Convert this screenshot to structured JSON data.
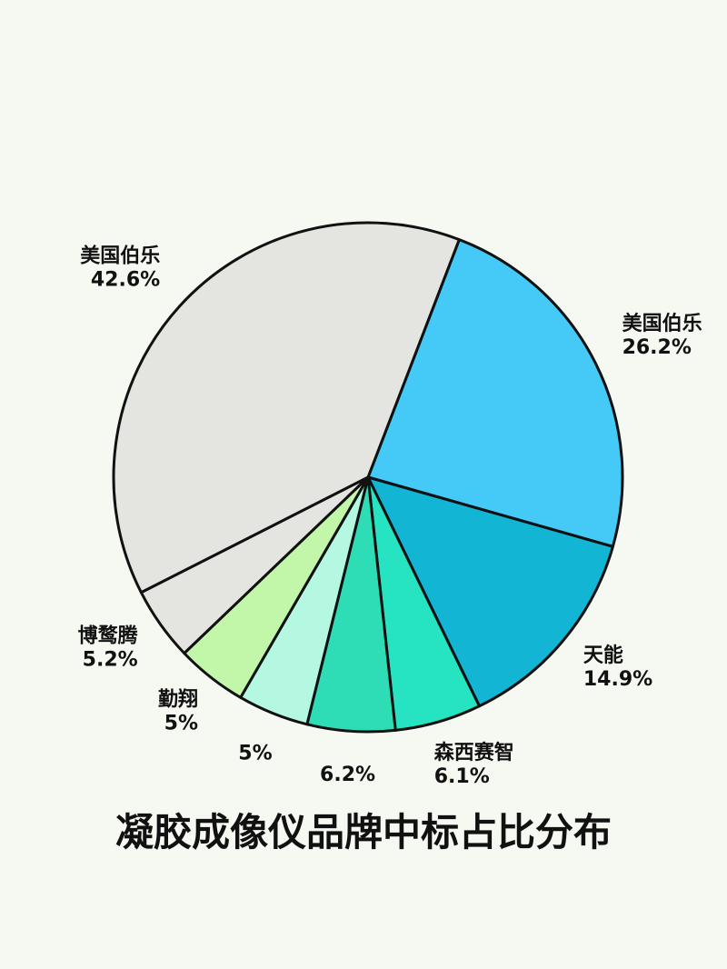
{
  "chart_data": {
    "type": "pie",
    "title": "凝胶成像仪品牌中标占比分布",
    "categories": [
      "美国伯乐",
      "天能",
      "森西赛智",
      null,
      null,
      "勤翔",
      "博鹜腾",
      "美国伯乐"
    ],
    "values": [
      26.2,
      14.9,
      6.1,
      6.2,
      5,
      5,
      5.2,
      42.6
    ],
    "value_labels": [
      "26.2%",
      "14.9%",
      "6.1%",
      "6.2%",
      "5%",
      "5%",
      "5.2%",
      "42.6%"
    ],
    "colors": [
      "#45c9f6",
      "#12b5d4",
      "#26e3c2",
      "#2edcb6",
      "#b4f8e2",
      "#c2f6a9",
      "#e4e4e1",
      "#e4e4e1"
    ]
  }
}
